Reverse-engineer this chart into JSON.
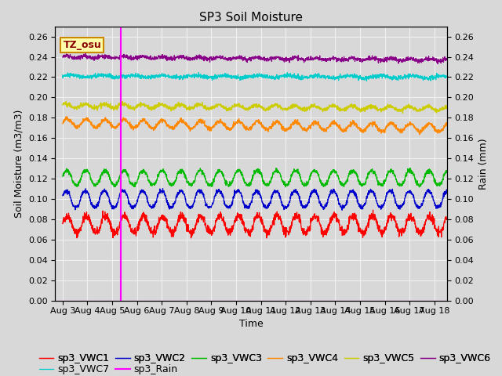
{
  "title": "SP3 Soil Moisture",
  "ylabel_left": "Soil Moisture (m3/m3)",
  "ylabel_right": "Rain (mm)",
  "xlabel": "Time",
  "ylim": [
    0.0,
    0.27
  ],
  "date_start": -0.3,
  "date_end": 15.5,
  "x_tick_labels": [
    "Aug 3",
    "Aug 4",
    "Aug 5",
    "Aug 6",
    "Aug 7",
    "Aug 8",
    "Aug 9",
    "Aug 10",
    "Aug 11",
    "Aug 12",
    "Aug 13",
    "Aug 14",
    "Aug 15",
    "Aug 16",
    "Aug 17",
    "Aug 18"
  ],
  "x_tick_positions": [
    0,
    1,
    2,
    3,
    4,
    5,
    6,
    7,
    8,
    9,
    10,
    11,
    12,
    13,
    14,
    15
  ],
  "vline_x": 2.35,
  "tz_label": "TZ_osu",
  "series": [
    {
      "name": "sp3_VWC1",
      "color": "#ff0000",
      "base": 0.075,
      "amp": 0.008,
      "freq": 1.3,
      "phase": 0.0,
      "noise": 0.002,
      "trend": 0.0
    },
    {
      "name": "sp3_VWC2",
      "color": "#0000cc",
      "base": 0.1,
      "amp": 0.008,
      "freq": 1.3,
      "phase": 0.4,
      "noise": 0.001,
      "trend": 0.0
    },
    {
      "name": "sp3_VWC3",
      "color": "#00bb00",
      "base": 0.121,
      "amp": 0.007,
      "freq": 1.3,
      "phase": 0.2,
      "noise": 0.001,
      "trend": 0.0
    },
    {
      "name": "sp3_VWC4",
      "color": "#ff8800",
      "base": 0.175,
      "amp": 0.004,
      "freq": 1.3,
      "phase": 0.1,
      "noise": 0.001,
      "trend": -0.005
    },
    {
      "name": "sp3_VWC5",
      "color": "#cccc00",
      "base": 0.192,
      "amp": 0.002,
      "freq": 1.3,
      "phase": 0.5,
      "noise": 0.001,
      "trend": -0.003
    },
    {
      "name": "sp3_VWC6",
      "color": "#880088",
      "base": 0.24,
      "amp": 0.001,
      "freq": 1.3,
      "phase": 0.3,
      "noise": 0.001,
      "trend": -0.003
    },
    {
      "name": "sp3_VWC7",
      "color": "#00cccc",
      "base": 0.221,
      "amp": 0.001,
      "freq": 0.8,
      "phase": 0.0,
      "noise": 0.001,
      "trend": -0.001
    }
  ],
  "rain_color": "#ff00ff",
  "background_color": "#d8d8d8",
  "plot_bg_color": "#d8d8d8",
  "grid_color": "#f0f0f0",
  "title_fontsize": 11,
  "axis_fontsize": 9,
  "tick_fontsize": 8,
  "legend_fontsize": 9
}
